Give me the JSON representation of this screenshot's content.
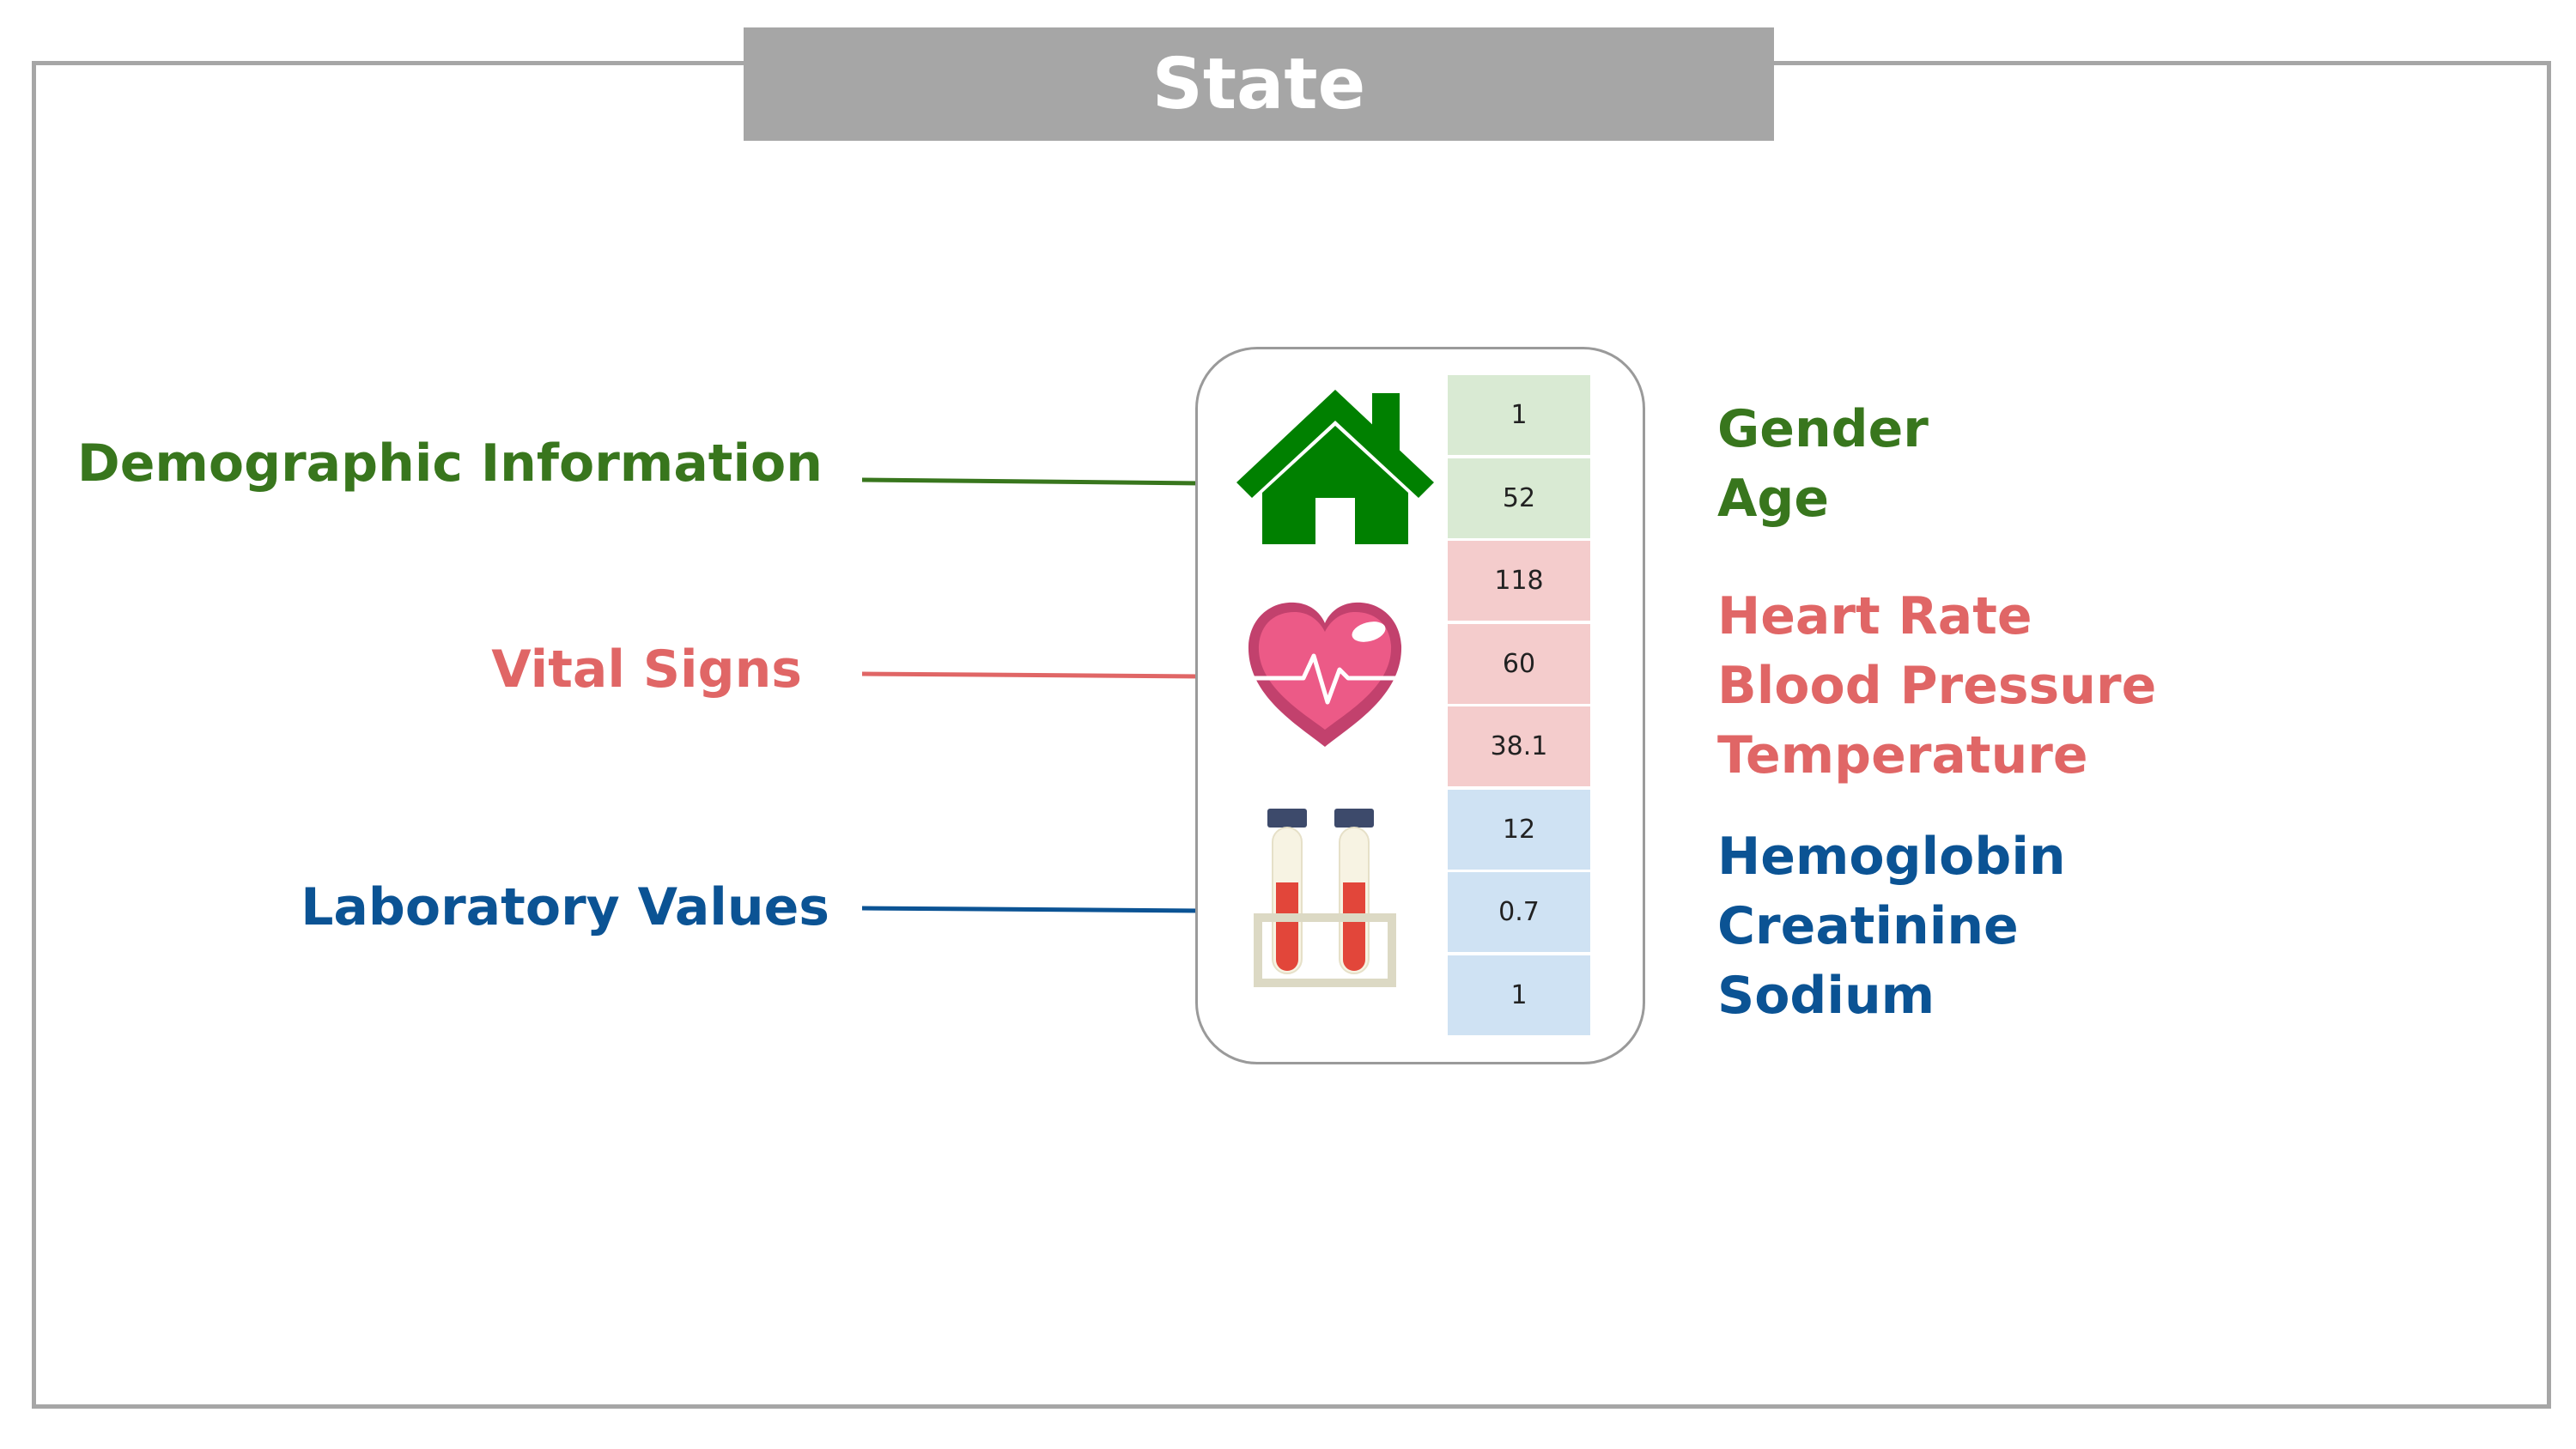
{
  "title": "State",
  "colors": {
    "demographic": "#38761d",
    "vital": "#e06666",
    "laboratory": "#0b5394",
    "border": "#a6a6a6"
  },
  "categories": {
    "demographic": "Demographic Information",
    "vital": "Vital Signs",
    "laboratory": "Laboratory Values"
  },
  "icons": [
    "house-icon",
    "heart-pulse-icon",
    "test-tubes-icon"
  ],
  "values": {
    "gender": "1",
    "age": "52",
    "heart_rate": "118",
    "blood_pressure": "60",
    "temperature": "38.1",
    "hemoglobin": "12",
    "creatinine": "0.7",
    "sodium": "1"
  },
  "features": {
    "demographic": [
      "Gender",
      "Age"
    ],
    "vital": [
      "Heart Rate",
      "Blood Pressure",
      "Temperature"
    ],
    "laboratory": [
      "Hemoglobin",
      "Creatinine",
      "Sodium"
    ]
  }
}
